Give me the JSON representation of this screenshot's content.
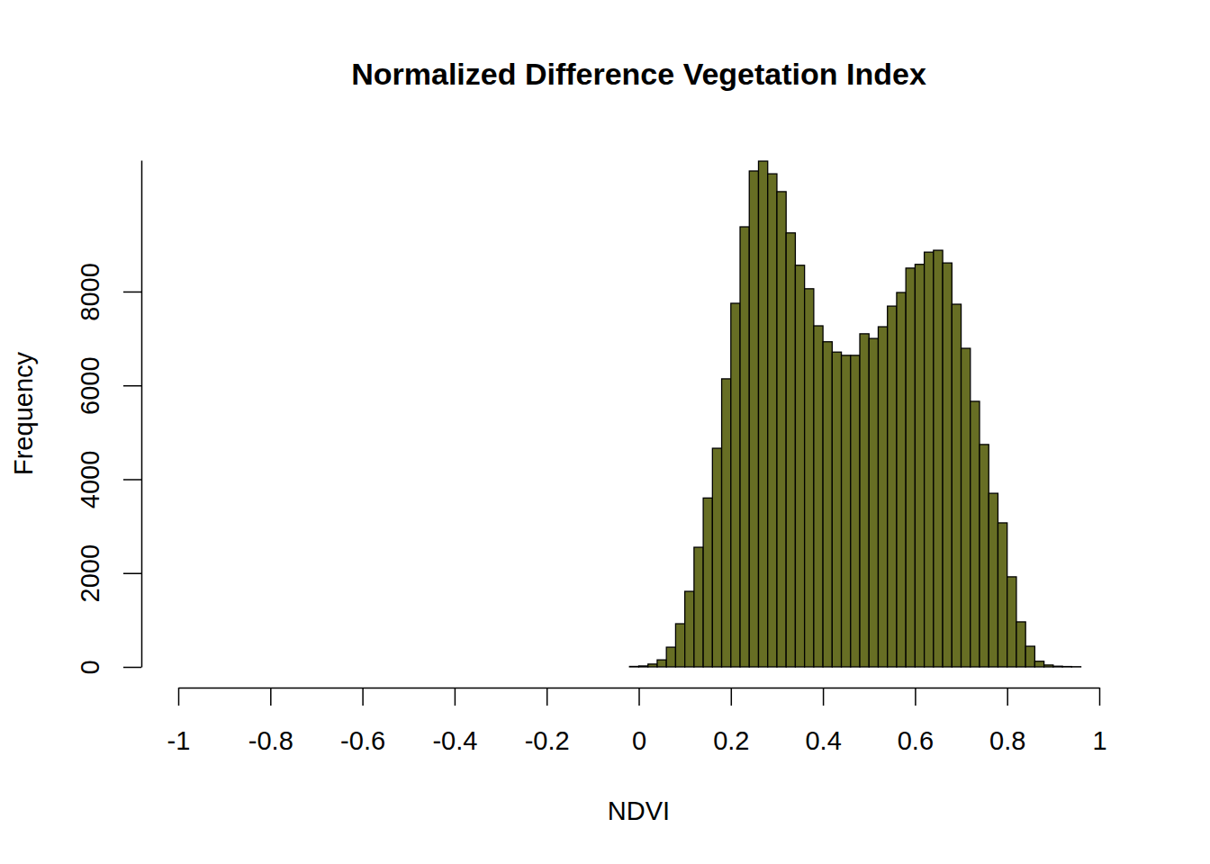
{
  "chart_data": {
    "type": "histogram",
    "title": "Normalized Difference Vegetation Index",
    "xlabel": "NDVI",
    "ylabel": "Frequency",
    "bins": [
      -0.02,
      0,
      0.02,
      0.04,
      0.06,
      0.08,
      0.1,
      0.12,
      0.14,
      0.16,
      0.18,
      0.2,
      0.22,
      0.24,
      0.26,
      0.28,
      0.3,
      0.32,
      0.34,
      0.36,
      0.38,
      0.4,
      0.42,
      0.44,
      0.46,
      0.48,
      0.5,
      0.52,
      0.54,
      0.56,
      0.58,
      0.6,
      0.62,
      0.64,
      0.66,
      0.68,
      0.7,
      0.72,
      0.74,
      0.76,
      0.78,
      0.8,
      0.82,
      0.84,
      0.86,
      0.88,
      0.9,
      0.92,
      0.94,
      0.96
    ],
    "counts": [
      10,
      20,
      60,
      150,
      420,
      920,
      1610,
      2550,
      3600,
      4660,
      6140,
      7750,
      9380,
      10570,
      10780,
      10510,
      10130,
      9250,
      8560,
      8060,
      7270,
      6930,
      6710,
      6640,
      6640,
      7100,
      7000,
      7250,
      7690,
      7980,
      8500,
      8580,
      8840,
      8880,
      8610,
      7730,
      6790,
      5660,
      4740,
      3700,
      3070,
      1920,
      960,
      440,
      120,
      40,
      15,
      8,
      4
    ],
    "color": "#676e24",
    "xlim": [
      -1,
      1
    ],
    "ylim": [
      0,
      10800
    ],
    "xticks": [
      -1,
      -0.8,
      -0.6,
      -0.4,
      -0.2,
      0,
      0.2,
      0.4,
      0.6,
      0.8,
      1
    ],
    "yticks": [
      0,
      2000,
      4000,
      6000,
      8000
    ]
  }
}
